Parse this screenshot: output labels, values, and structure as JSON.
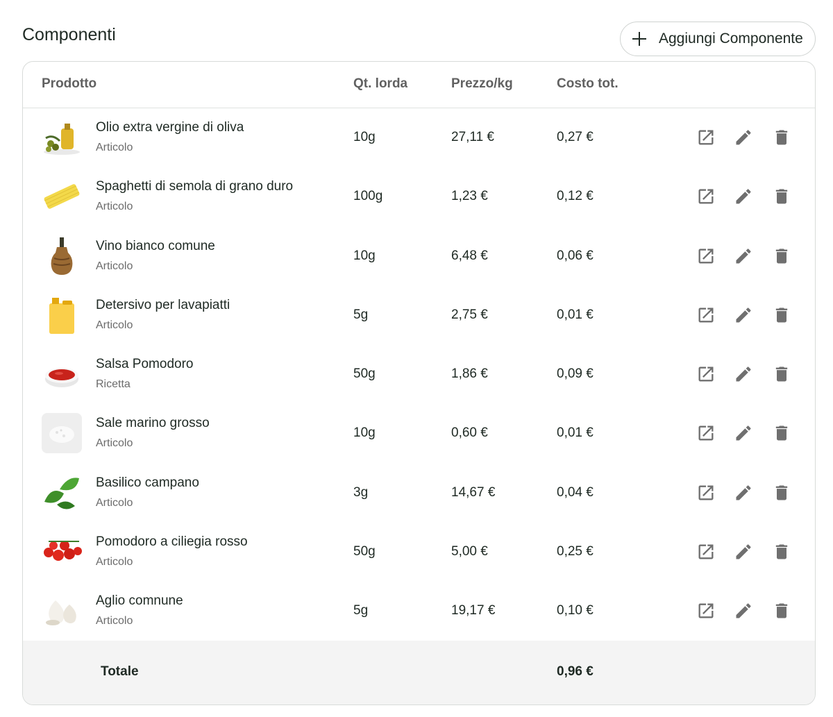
{
  "section": {
    "title": "Componenti",
    "add_button_label": "Aggiungi Componente"
  },
  "table": {
    "headers": {
      "product": "Prodotto",
      "qty": "Qt. lorda",
      "price": "Prezzo/kg",
      "cost": "Costo tot."
    },
    "rows": [
      {
        "name": "Olio extra vergine di oliva",
        "type": "Articolo",
        "qty": "10g",
        "price": "27,11 €",
        "cost": "0,27 €",
        "icon": "olive-oil-image"
      },
      {
        "name": "Spaghetti di semola di grano duro",
        "type": "Articolo",
        "qty": "100g",
        "price": "1,23 €",
        "cost": "0,12 €",
        "icon": "spaghetti-image"
      },
      {
        "name": "Vino bianco comune",
        "type": "Articolo",
        "qty": "10g",
        "price": "6,48 €",
        "cost": "0,06 €",
        "icon": "wine-flask-image"
      },
      {
        "name": "Detersivo per lavapiatti",
        "type": "Articolo",
        "qty": "5g",
        "price": "2,75 €",
        "cost": "0,01 €",
        "icon": "detergent-jug-image"
      },
      {
        "name": "Salsa Pomodoro",
        "type": "Ricetta",
        "qty": "50g",
        "price": "1,86 €",
        "cost": "0,09 €",
        "icon": "tomato-sauce-image"
      },
      {
        "name": "Sale marino grosso",
        "type": "Articolo",
        "qty": "10g",
        "price": "0,60 €",
        "cost": "0,01 €",
        "icon": "sea-salt-image"
      },
      {
        "name": "Basilico campano",
        "type": "Articolo",
        "qty": "3g",
        "price": "14,67 €",
        "cost": "0,04 €",
        "icon": "basil-image"
      },
      {
        "name": "Pomodoro a ciliegia rosso",
        "type": "Articolo",
        "qty": "50g",
        "price": "5,00 €",
        "cost": "0,25 €",
        "icon": "cherry-tomato-image"
      },
      {
        "name": "Aglio comnune",
        "type": "Articolo",
        "qty": "5g",
        "price": "19,17 €",
        "cost": "0,10 €",
        "icon": "garlic-image"
      }
    ],
    "actions": [
      "open-in-new-icon",
      "edit-pencil-icon",
      "delete-trash-icon"
    ],
    "footer": {
      "label": "Totale",
      "total": "0,96 €"
    }
  },
  "colors": {
    "text": "#1f2a24",
    "header_text": "#616161",
    "icon": "#6f6f6f",
    "footer_bg": "#f4f4f4",
    "border": "#d8dbd9"
  }
}
